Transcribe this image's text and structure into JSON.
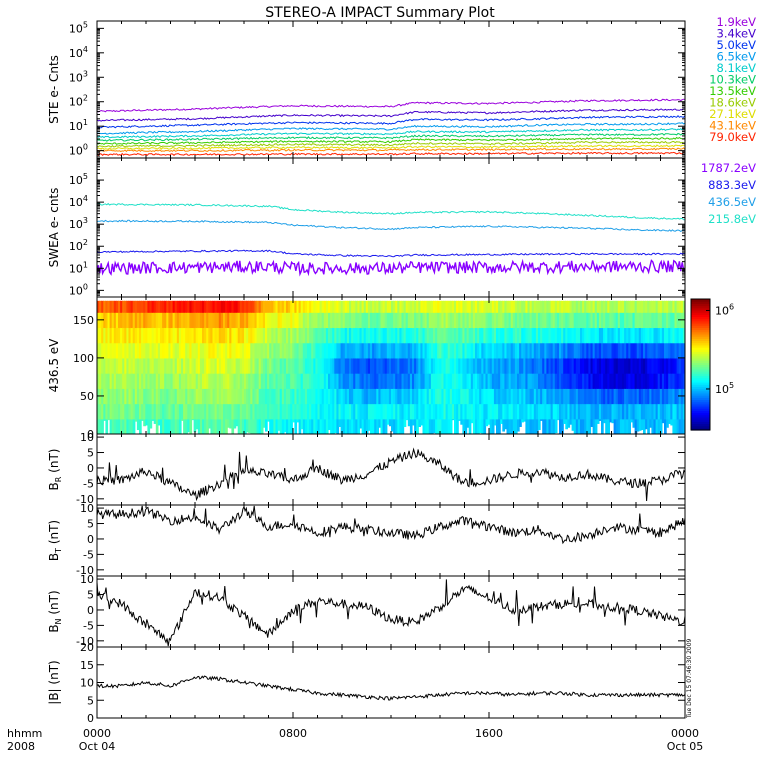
{
  "title": "STEREO-A IMPACT Summary Plot",
  "stamp": "Tue Dec 15 07:46:30 2009",
  "x_axis": {
    "row_labels": [
      "hhmm",
      "2008"
    ],
    "ticks": [
      {
        "time": "0000",
        "date": "Oct 04",
        "hour": 0
      },
      {
        "time": "0800",
        "date": "",
        "hour": 8
      },
      {
        "time": "1600",
        "date": "",
        "hour": 16
      },
      {
        "time": "0000",
        "date": "Oct 05",
        "hour": 24
      }
    ]
  },
  "chart_data": [
    {
      "id": "ste",
      "type": "line",
      "ylabel": "STE e- Cnts",
      "yscale": "log",
      "ylim": [
        0.5,
        200000
      ],
      "yticks": [
        {
          "v": 1,
          "label": "10",
          "exp": "0"
        },
        {
          "v": 10,
          "label": "10",
          "exp": "1"
        },
        {
          "v": 100,
          "label": "10",
          "exp": "2"
        },
        {
          "v": 1000,
          "label": "10",
          "exp": "3"
        },
        {
          "v": 10000,
          "label": "10",
          "exp": "4"
        },
        {
          "v": 100000,
          "label": "10",
          "exp": "5"
        }
      ],
      "x": [
        0,
        4,
        8,
        12,
        13,
        16,
        18,
        20,
        22,
        24
      ],
      "series": [
        {
          "name": "1.9keV",
          "color": "#9900dd",
          "values": [
            40,
            50,
            68,
            63,
            90,
            85,
            95,
            110,
            115,
            120
          ]
        },
        {
          "name": "3.4keV",
          "color": "#4400cc",
          "values": [
            17,
            20,
            28,
            26,
            38,
            35,
            40,
            45,
            46,
            48
          ]
        },
        {
          "name": "5.0keV",
          "color": "#0033ee",
          "values": [
            9,
            11,
            14,
            13,
            19,
            18,
            20,
            23,
            24,
            25
          ]
        },
        {
          "name": "6.5keV",
          "color": "#0099ee",
          "values": [
            5,
            6,
            8,
            7.5,
            10,
            9.5,
            11,
            12,
            12,
            13
          ]
        },
        {
          "name": "8.1keV",
          "color": "#00cccc",
          "values": [
            3.5,
            4,
            5,
            4.8,
            6,
            5.8,
            6.5,
            7,
            7,
            7.5
          ]
        },
        {
          "name": "10.3keV",
          "color": "#00cc66",
          "values": [
            2.6,
            2.9,
            3.4,
            3.3,
            4,
            3.9,
            4.2,
            4.5,
            4.5,
            4.7
          ]
        },
        {
          "name": "13.5keV",
          "color": "#33cc00",
          "values": [
            1.9,
            2.1,
            2.4,
            2.3,
            2.8,
            2.7,
            2.9,
            3.1,
            3.1,
            3.2
          ]
        },
        {
          "name": "18.6keV",
          "color": "#99cc00",
          "values": [
            1.5,
            1.6,
            1.8,
            1.7,
            2,
            1.9,
            2,
            2.2,
            2.2,
            2.2
          ]
        },
        {
          "name": "27.1keV",
          "color": "#dddd00",
          "values": [
            1.2,
            1.25,
            1.35,
            1.3,
            1.45,
            1.4,
            1.5,
            1.55,
            1.55,
            1.6
          ]
        },
        {
          "name": "43.1keV",
          "color": "#ff8800",
          "values": [
            1.0,
            1.0,
            1.05,
            1.05,
            1.1,
            1.1,
            1.15,
            1.15,
            1.15,
            1.2
          ]
        },
        {
          "name": "79.0keV",
          "color": "#ff2200",
          "values": [
            0.7,
            0.7,
            0.72,
            0.72,
            0.75,
            0.75,
            0.78,
            0.78,
            0.78,
            0.8
          ]
        }
      ]
    },
    {
      "id": "swea",
      "type": "line",
      "ylabel": "SWEA e- cnts",
      "yscale": "log",
      "ylim": [
        0.5,
        1000000
      ],
      "yticks": [
        {
          "v": 1,
          "label": "10",
          "exp": "0"
        },
        {
          "v": 10,
          "label": "10",
          "exp": "1"
        },
        {
          "v": 100,
          "label": "10",
          "exp": "2"
        },
        {
          "v": 1000,
          "label": "10",
          "exp": "3"
        },
        {
          "v": 10000,
          "label": "10",
          "exp": "4"
        },
        {
          "v": 100000,
          "label": "10",
          "exp": "5"
        }
      ],
      "x": [
        0,
        4,
        7,
        8,
        10,
        12,
        13,
        16,
        20,
        22,
        24
      ],
      "series": [
        {
          "name": "1787.2eV",
          "color": "#8800ff",
          "values": [
            10,
            11,
            12,
            10,
            10,
            10,
            11,
            11,
            12,
            12,
            12
          ]
        },
        {
          "name": "883.3eV",
          "color": "#1a1aee",
          "values": [
            55,
            60,
            62,
            45,
            38,
            35,
            40,
            42,
            45,
            44,
            45
          ]
        },
        {
          "name": "436.5eV",
          "color": "#1f9fe8",
          "values": [
            1400,
            1350,
            1200,
            900,
            700,
            600,
            700,
            800,
            650,
            550,
            500
          ]
        },
        {
          "name": "215.8eV",
          "color": "#20e0c8",
          "values": [
            8000,
            7500,
            6500,
            4500,
            3500,
            3000,
            3400,
            3600,
            2500,
            2000,
            1700
          ]
        }
      ]
    },
    {
      "id": "pad",
      "type": "heatmap",
      "ylabel": "436.5 eV",
      "ylim": [
        0,
        180
      ],
      "yticks": [
        0,
        50,
        100,
        150
      ],
      "x": [
        0,
        1,
        2,
        3,
        4,
        5,
        6,
        7,
        8,
        9,
        10,
        11,
        12,
        13,
        14,
        15,
        16,
        17,
        18,
        19,
        20,
        21,
        22,
        23,
        24
      ],
      "y_pitch_angle": [
        10,
        30,
        50,
        70,
        90,
        110,
        130,
        150,
        170
      ],
      "colorbar": {
        "ticks": [
          {
            "v": 100000,
            "label": "10",
            "exp": "5"
          },
          {
            "v": 1000000,
            "label": "10",
            "exp": "6"
          }
        ],
        "range": [
          30000,
          1400000
        ]
      },
      "z_level_0_to_1": [
        [
          0.45,
          0.48,
          0.5,
          0.52,
          0.55,
          0.58,
          0.62,
          0.66,
          0.78
        ],
        [
          0.46,
          0.5,
          0.52,
          0.55,
          0.57,
          0.6,
          0.64,
          0.68,
          0.8
        ],
        [
          0.44,
          0.48,
          0.51,
          0.54,
          0.56,
          0.6,
          0.65,
          0.7,
          0.82
        ],
        [
          0.43,
          0.47,
          0.5,
          0.53,
          0.56,
          0.59,
          0.63,
          0.69,
          0.84
        ],
        [
          0.45,
          0.49,
          0.52,
          0.55,
          0.58,
          0.61,
          0.65,
          0.72,
          0.86
        ],
        [
          0.46,
          0.5,
          0.53,
          0.56,
          0.59,
          0.62,
          0.66,
          0.73,
          0.87
        ],
        [
          0.44,
          0.48,
          0.51,
          0.54,
          0.57,
          0.6,
          0.64,
          0.7,
          0.85
        ],
        [
          0.4,
          0.43,
          0.45,
          0.47,
          0.49,
          0.52,
          0.56,
          0.62,
          0.68
        ],
        [
          0.38,
          0.41,
          0.43,
          0.45,
          0.47,
          0.5,
          0.54,
          0.6,
          0.66
        ],
        [
          0.36,
          0.39,
          0.4,
          0.4,
          0.4,
          0.42,
          0.46,
          0.52,
          0.6
        ],
        [
          0.35,
          0.37,
          0.34,
          0.28,
          0.25,
          0.3,
          0.4,
          0.5,
          0.58
        ],
        [
          0.34,
          0.36,
          0.3,
          0.22,
          0.2,
          0.28,
          0.38,
          0.48,
          0.57
        ],
        [
          0.34,
          0.36,
          0.32,
          0.24,
          0.22,
          0.3,
          0.39,
          0.49,
          0.57
        ],
        [
          0.35,
          0.37,
          0.33,
          0.27,
          0.25,
          0.31,
          0.4,
          0.5,
          0.58
        ],
        [
          0.36,
          0.39,
          0.4,
          0.4,
          0.4,
          0.43,
          0.47,
          0.53,
          0.6
        ],
        [
          0.35,
          0.38,
          0.38,
          0.36,
          0.35,
          0.39,
          0.45,
          0.52,
          0.59
        ],
        [
          0.34,
          0.36,
          0.34,
          0.3,
          0.28,
          0.33,
          0.42,
          0.5,
          0.58
        ],
        [
          0.33,
          0.35,
          0.33,
          0.3,
          0.28,
          0.32,
          0.41,
          0.5,
          0.57
        ],
        [
          0.32,
          0.34,
          0.31,
          0.26,
          0.24,
          0.3,
          0.4,
          0.49,
          0.56
        ],
        [
          0.31,
          0.33,
          0.28,
          0.2,
          0.18,
          0.26,
          0.38,
          0.48,
          0.56
        ],
        [
          0.3,
          0.31,
          0.24,
          0.14,
          0.12,
          0.22,
          0.36,
          0.47,
          0.55
        ],
        [
          0.3,
          0.3,
          0.22,
          0.1,
          0.08,
          0.2,
          0.35,
          0.46,
          0.55
        ],
        [
          0.3,
          0.3,
          0.22,
          0.1,
          0.08,
          0.2,
          0.35,
          0.46,
          0.55
        ],
        [
          0.31,
          0.31,
          0.24,
          0.14,
          0.12,
          0.22,
          0.36,
          0.47,
          0.55
        ],
        [
          0.32,
          0.33,
          0.28,
          0.2,
          0.18,
          0.26,
          0.38,
          0.48,
          0.56
        ]
      ]
    },
    {
      "id": "br",
      "type": "line",
      "ylabel": "B",
      "ylabel_sub": "R",
      "ylabel_unit": " (nT)",
      "ylim": [
        -12,
        11
      ],
      "yticks": [
        -10,
        -5,
        0,
        5,
        10
      ],
      "x": [
        0,
        1,
        2,
        3,
        4,
        5,
        6,
        7,
        8,
        9,
        10,
        11,
        12,
        13,
        14,
        15,
        16,
        17,
        18,
        19,
        20,
        21,
        22,
        23,
        24
      ],
      "series": [
        {
          "name": "",
          "color": "#000000",
          "values": [
            -4,
            -4,
            -1,
            -5,
            -9,
            -5,
            -1,
            -2,
            -4,
            0,
            -4,
            -2,
            2,
            5,
            1,
            -5,
            -4,
            -2,
            -1,
            -3,
            -2,
            -4,
            -5,
            -4,
            -1
          ]
        }
      ]
    },
    {
      "id": "bt",
      "type": "line",
      "ylabel": "B",
      "ylabel_sub": "T",
      "ylabel_unit": " (nT)",
      "ylim": [
        -12,
        11
      ],
      "yticks": [
        -10,
        -5,
        0,
        5,
        10
      ],
      "x": [
        0,
        1,
        2,
        3,
        4,
        5,
        6,
        7,
        8,
        9,
        10,
        11,
        12,
        13,
        14,
        15,
        16,
        17,
        18,
        19,
        20,
        21,
        22,
        23,
        24
      ],
      "series": [
        {
          "name": "",
          "color": "#000000",
          "values": [
            8,
            8,
            9,
            6,
            7,
            3,
            9,
            4,
            5,
            2,
            4,
            3,
            2,
            1,
            4,
            6,
            4,
            2,
            3,
            0,
            1,
            4,
            3,
            2,
            6
          ]
        }
      ]
    },
    {
      "id": "bn",
      "type": "line",
      "ylabel": "B",
      "ylabel_sub": "N",
      "ylabel_unit": " (nT)",
      "ylim": [
        -12,
        11
      ],
      "yticks": [
        -10,
        -5,
        0,
        5,
        10
      ],
      "x": [
        0,
        1,
        2,
        3,
        4,
        5,
        6,
        7,
        8,
        9,
        10,
        11,
        12,
        13,
        14,
        15,
        16,
        17,
        18,
        19,
        20,
        21,
        22,
        23,
        24
      ],
      "series": [
        {
          "name": "",
          "color": "#000000",
          "values": [
            5,
            2,
            -5,
            -10,
            6,
            4,
            -2,
            -8,
            0,
            3,
            2,
            1,
            -3,
            -4,
            1,
            7,
            4,
            0,
            1,
            2,
            2,
            1,
            0,
            -2,
            -4
          ]
        }
      ]
    },
    {
      "id": "bmag",
      "type": "line",
      "ylabel": "|B| (nT)",
      "ylim": [
        0,
        20
      ],
      "yticks": [
        0,
        5,
        10,
        15,
        20
      ],
      "x": [
        0,
        1,
        2,
        3,
        4,
        5,
        6,
        7,
        8,
        9,
        10,
        11,
        12,
        13,
        14,
        15,
        16,
        17,
        18,
        19,
        20,
        21,
        22,
        23,
        24
      ],
      "series": [
        {
          "name": "",
          "color": "#000000",
          "values": [
            9,
            9,
            10,
            9,
            11.5,
            11,
            10,
            9,
            8,
            7,
            6.5,
            6,
            5.5,
            6,
            6.5,
            7,
            7,
            6.5,
            7,
            7,
            6.5,
            6.5,
            6.5,
            6.5,
            6.5
          ]
        }
      ]
    }
  ]
}
